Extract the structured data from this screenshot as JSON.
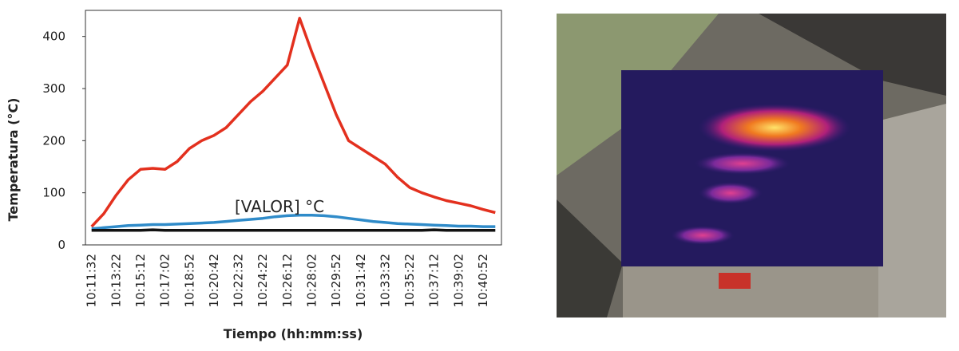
{
  "chart_data": {
    "type": "line",
    "y_axis_label": "Temperatura (°C)",
    "x_axis_label": "Tiempo (hh:mm:ss)",
    "annotation": "[VALOR] °C",
    "categories": [
      "10:11:32",
      null,
      "10:13:22",
      null,
      "10:15:12",
      null,
      "10:17:02",
      null,
      "10:18:52",
      null,
      "10:20:42",
      null,
      "10:22:32",
      null,
      "10:24:22",
      null,
      "10:26:12",
      null,
      "10:28:02",
      null,
      "10:29:52",
      null,
      "10:31:42",
      null,
      "10:33:32",
      null,
      "10:35:22",
      null,
      "10:37:12",
      null,
      "10:39:02",
      null,
      "10:40:52",
      null
    ],
    "series": [
      {
        "color": "#e3301e",
        "values": [
          35,
          60,
          95,
          125,
          145,
          147,
          145,
          160,
          185,
          200,
          210,
          225,
          250,
          275,
          295,
          320,
          345,
          435,
          370,
          310,
          250,
          200,
          185,
          170,
          155,
          130,
          110,
          100,
          92,
          85,
          80,
          75,
          68,
          62
        ]
      },
      {
        "color": "#2f8bc9",
        "values": [
          31,
          33,
          35,
          37,
          38,
          39,
          39,
          40,
          41,
          42,
          43,
          45,
          47,
          49,
          51,
          54,
          56,
          57,
          57,
          56,
          54,
          51,
          48,
          45,
          43,
          41,
          40,
          39,
          38,
          37,
          36,
          36,
          35,
          35
        ]
      },
      {
        "color": "#111111",
        "values": [
          28,
          28,
          28,
          28,
          28,
          29,
          28,
          28,
          28,
          28,
          28,
          28,
          28,
          28,
          28,
          28,
          28,
          28,
          28,
          28,
          28,
          28,
          28,
          28,
          28,
          28,
          28,
          28,
          29,
          28,
          28,
          28,
          28,
          28
        ]
      }
    ],
    "ylim": [
      0,
      450
    ],
    "yticks": [
      0,
      100,
      200,
      300,
      400
    ]
  }
}
